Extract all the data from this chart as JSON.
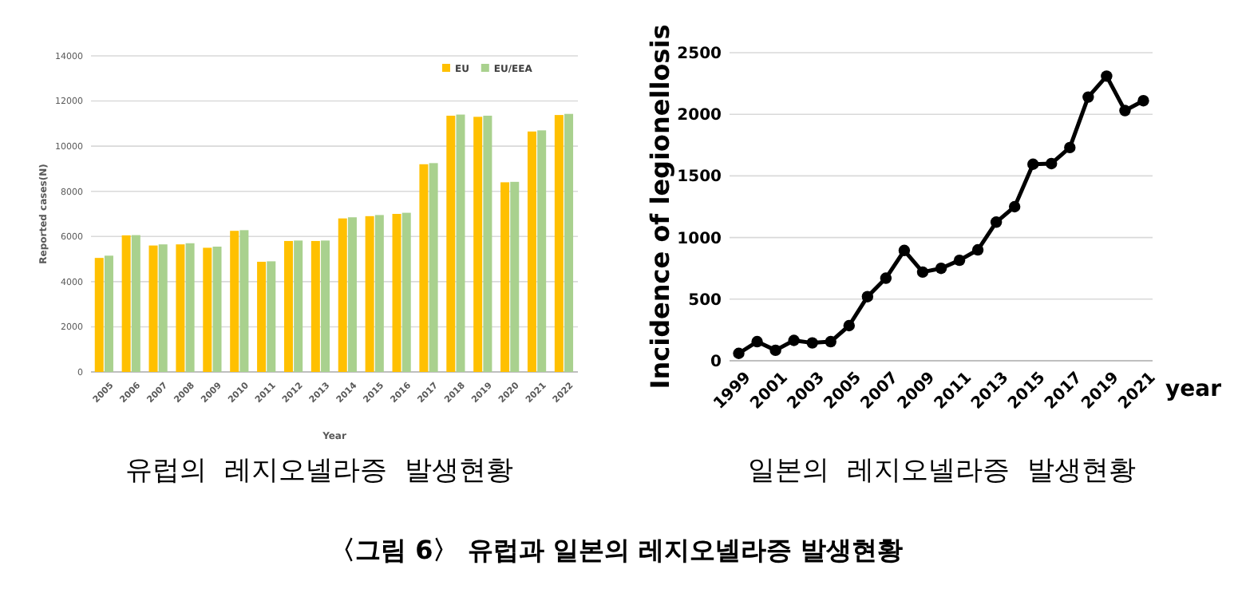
{
  "chart_data": [
    {
      "type": "bar",
      "xlabel": "Year",
      "ylabel": "Reported cases(N)",
      "categories": [
        "2005",
        "2006",
        "2007",
        "2008",
        "2009",
        "2010",
        "2011",
        "2012",
        "2013",
        "2014",
        "2015",
        "2016",
        "2017",
        "2018",
        "2019",
        "2020",
        "2021",
        "2022"
      ],
      "series": [
        {
          "name": "EU",
          "color": "#ffc000",
          "values": [
            5050,
            6050,
            5600,
            5650,
            5500,
            6250,
            4880,
            5800,
            5800,
            6800,
            6900,
            7000,
            9200,
            11350,
            11300,
            8400,
            10650,
            11380
          ]
        },
        {
          "name": "EU/EEA",
          "color": "#a9d18e",
          "values": [
            5150,
            6060,
            5650,
            5700,
            5550,
            6280,
            4900,
            5820,
            5820,
            6850,
            6950,
            7050,
            9250,
            11400,
            11350,
            8420,
            10700,
            11430
          ]
        }
      ],
      "ylim": [
        0,
        14000
      ],
      "yticks": [
        0,
        2000,
        4000,
        6000,
        8000,
        10000,
        12000,
        14000
      ],
      "grid": "y",
      "legend": "top right",
      "annotations": [
        "유럽의  레지오넬라증  발생현황",
        "〈그림 6〉 유럽과 일본의 레지오넬라증 발생현황"
      ]
    },
    {
      "type": "line",
      "xlabel": "year",
      "ylabel": "Incidence of legionellosis",
      "x": [
        1999,
        2000,
        2001,
        2002,
        2003,
        2004,
        2005,
        2006,
        2007,
        2008,
        2009,
        2010,
        2011,
        2012,
        2013,
        2014,
        2015,
        2016,
        2017,
        2018,
        2019,
        2020,
        2021
      ],
      "series": [
        {
          "color": "#000000",
          "values": [
            60,
            155,
            85,
            165,
            145,
            155,
            285,
            520,
            670,
            895,
            720,
            750,
            815,
            900,
            1125,
            1250,
            1595,
            1600,
            1730,
            2140,
            2310,
            2030,
            2110
          ]
        }
      ],
      "xlim": [
        1998.5,
        2021.5
      ],
      "xticks": [
        1999,
        2001,
        2003,
        2005,
        2007,
        2009,
        2011,
        2013,
        2015,
        2017,
        2019,
        2021
      ],
      "ylim": [
        0,
        2500
      ],
      "yticks": [
        0,
        500,
        1000,
        1500,
        2000,
        2500
      ],
      "grid": "y",
      "marker": "circle",
      "line_style": "solid",
      "annotations": [
        "일본의  레지오넬라증  발생현황"
      ]
    }
  ]
}
